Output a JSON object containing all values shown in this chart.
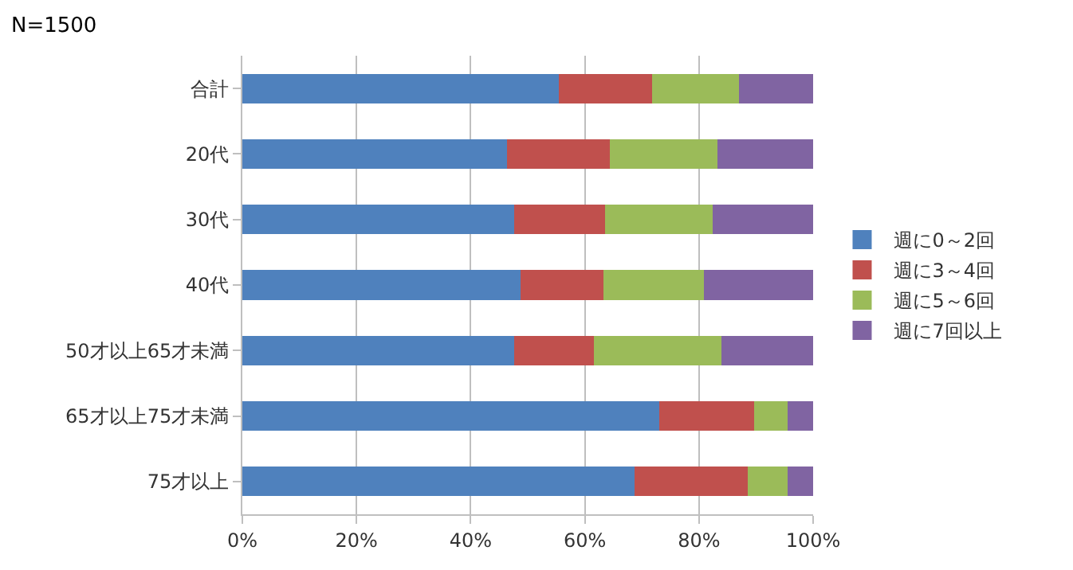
{
  "chart_data": {
    "type": "bar",
    "orientation": "horizontal",
    "stacked": true,
    "annotations": [
      "N=1500"
    ],
    "categories": [
      "合計",
      "20代",
      "30代",
      "40代",
      "50才以上65才未満",
      "65才以上75才未満",
      "75才以上"
    ],
    "series": [
      {
        "name": "週に0～2回",
        "color": "#4f81bd",
        "values": [
          55.4,
          46.4,
          47.6,
          48.7,
          47.6,
          73.1,
          68.7
        ]
      },
      {
        "name": "週に3～4回",
        "color": "#c0504d",
        "values": [
          16.4,
          18.0,
          16.0,
          14.5,
          14.0,
          16.5,
          19.8
        ]
      },
      {
        "name": "週に5～6回",
        "color": "#9bbb59",
        "values": [
          15.2,
          18.8,
          18.8,
          17.6,
          22.4,
          5.9,
          7.0
        ]
      },
      {
        "name": "週に7回以上",
        "color": "#8064a2",
        "values": [
          13.0,
          16.8,
          17.6,
          19.2,
          16.0,
          4.5,
          4.5
        ]
      }
    ],
    "xlim": [
      0,
      100
    ],
    "xticks": [
      {
        "value": 0,
        "label": "0%"
      },
      {
        "value": 20,
        "label": "20%"
      },
      {
        "value": 40,
        "label": "40%"
      },
      {
        "value": 60,
        "label": "60%"
      },
      {
        "value": 80,
        "label": "80%"
      },
      {
        "value": 100,
        "label": "100%"
      }
    ],
    "grid": "x",
    "legend": "right"
  }
}
